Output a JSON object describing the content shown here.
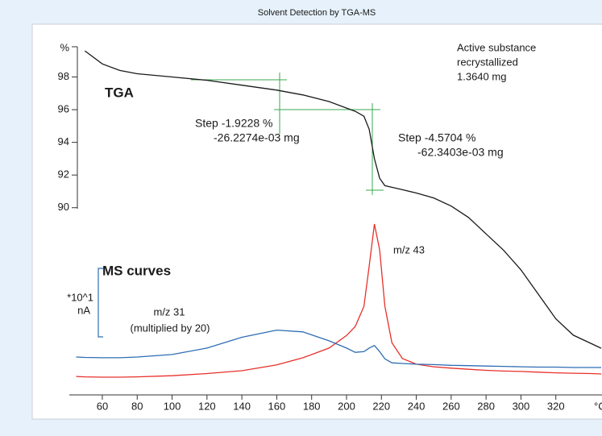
{
  "chart_data": {
    "type": "line",
    "title": "Solvent Detection by TGA-MS",
    "xlabel": "°C",
    "ylabel": "%",
    "x": [
      45,
      50,
      60,
      70,
      80,
      100,
      120,
      140,
      160,
      175,
      190,
      200,
      205,
      210,
      213,
      216,
      219,
      222,
      226,
      232,
      240,
      250,
      260,
      270,
      280,
      290,
      300,
      310,
      320,
      330,
      340,
      346
    ],
    "series": [
      {
        "name": "TGA",
        "color": "#1a1a1a",
        "values": [
          null,
          99.6,
          98.8,
          98.4,
          98.2,
          98.0,
          97.8,
          97.5,
          97.2,
          96.9,
          96.5,
          96.1,
          95.9,
          95.6,
          94.8,
          93.0,
          91.8,
          91.35,
          91.25,
          91.1,
          90.9,
          90.6,
          90.1,
          89.4,
          88.4,
          87.4,
          86.2,
          84.7,
          83.2,
          82.2,
          81.7,
          81.4
        ]
      },
      {
        "name": "m/z 43",
        "color": "#e8302a",
        "axis": "y2",
        "values": [
          0.76,
          0.75,
          0.74,
          0.74,
          0.75,
          0.78,
          0.84,
          0.92,
          1.08,
          1.28,
          1.55,
          1.9,
          2.15,
          2.71,
          3.83,
          5.0,
          4.28,
          2.71,
          1.7,
          1.26,
          1.1,
          1.03,
          0.99,
          0.96,
          0.93,
          0.91,
          0.9,
          0.88,
          0.86,
          0.85,
          0.84,
          0.83
        ]
      },
      {
        "name": "m/z 31",
        "color": "#2e6db4",
        "axis": "y2",
        "values": [
          1.3,
          1.29,
          1.28,
          1.28,
          1.3,
          1.37,
          1.55,
          1.85,
          2.05,
          2.0,
          1.75,
          1.55,
          1.43,
          1.45,
          1.55,
          1.62,
          1.45,
          1.25,
          1.14,
          1.12,
          1.1,
          1.09,
          1.07,
          1.06,
          1.05,
          1.04,
          1.03,
          1.02,
          1.02,
          1.01,
          1.01,
          1.01
        ]
      }
    ],
    "xlim": [
      42,
      346
    ],
    "xticks": [
      60,
      80,
      100,
      120,
      140,
      160,
      180,
      200,
      220,
      240,
      260,
      280,
      300,
      320
    ],
    "ylim": [
      78,
      100
    ],
    "yticks": [
      90,
      92,
      94,
      96,
      98
    ],
    "y2lim": [
      0,
      10
    ],
    "annotations": [
      {
        "text": "TGA",
        "color": "#000000"
      },
      {
        "text": "Active substance",
        "color": "#1a1a1a"
      },
      {
        "text": "recrystallized",
        "color": "#1a1a1a"
      },
      {
        "text": "1.3640 mg",
        "color": "#1a1a1a"
      },
      {
        "text": "Step -1.9228 %",
        "color": "#1f9a3a"
      },
      {
        "text": "-26.2274e-03 mg",
        "color": "#1f9a3a"
      },
      {
        "text": "Step -4.5704 %",
        "color": "#1f9a3a"
      },
      {
        "text": "-62.3403e-03 mg",
        "color": "#1f9a3a"
      },
      {
        "text": "MS curves",
        "color": "#2e6db4"
      },
      {
        "text": "*10^1",
        "color": "#2e6db4"
      },
      {
        "text": "nA",
        "color": "#2e6db4"
      },
      {
        "text": "(multiplied by 20)",
        "color": "#2e6db4"
      }
    ]
  }
}
